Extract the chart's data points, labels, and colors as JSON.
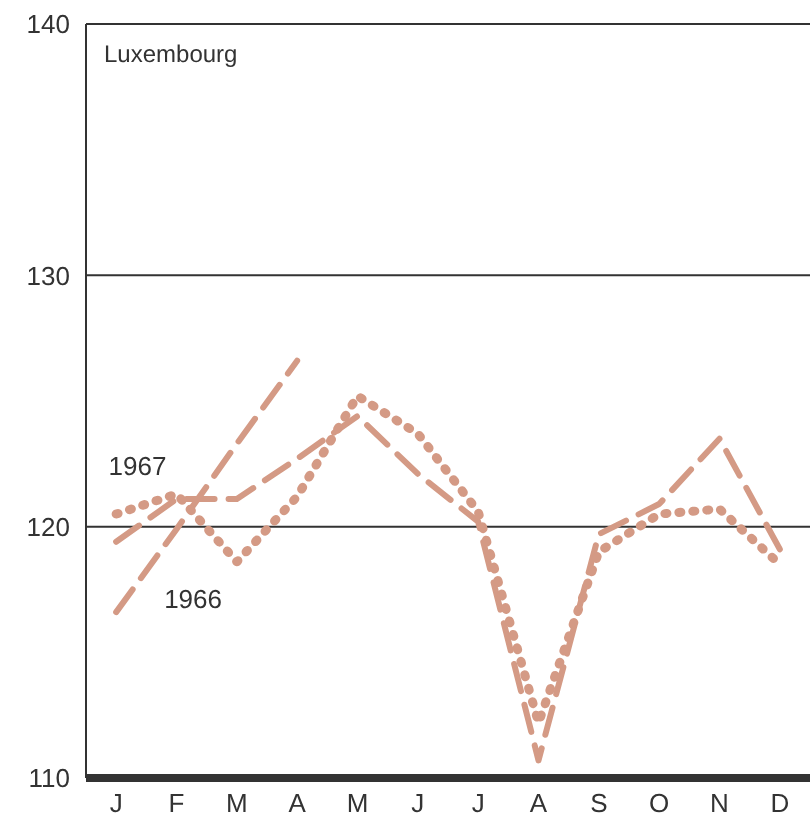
{
  "chart_data": {
    "type": "line",
    "title": "Luxembourg",
    "categories": [
      "J",
      "F",
      "M",
      "A",
      "M",
      "J",
      "J",
      "A",
      "S",
      "O",
      "N",
      "D"
    ],
    "ylim": [
      110,
      140
    ],
    "yticks": [
      110,
      120,
      130,
      140
    ],
    "grid": "y",
    "series": [
      {
        "name": "1966",
        "color": "#d49a85",
        "line_style": "dashed",
        "values": [
          116.6,
          119.9,
          123.3,
          126.6,
          null,
          null,
          null,
          null,
          null,
          null,
          null,
          null
        ]
      },
      {
        "name": "1967",
        "color": "#d49a85",
        "line_style": "dashed",
        "values": [
          119.4,
          121.1,
          121.1,
          122.7,
          124.4,
          122.1,
          120.2,
          110.7,
          119.7,
          120.9,
          123.5,
          119.1
        ]
      },
      {
        "color": "#d49a85",
        "line_style": "dotted",
        "values": [
          120.5,
          121.3,
          118.6,
          121.2,
          125.2,
          123.7,
          120.6,
          112.2,
          119.0,
          120.5,
          120.7,
          118.5
        ]
      }
    ]
  }
}
